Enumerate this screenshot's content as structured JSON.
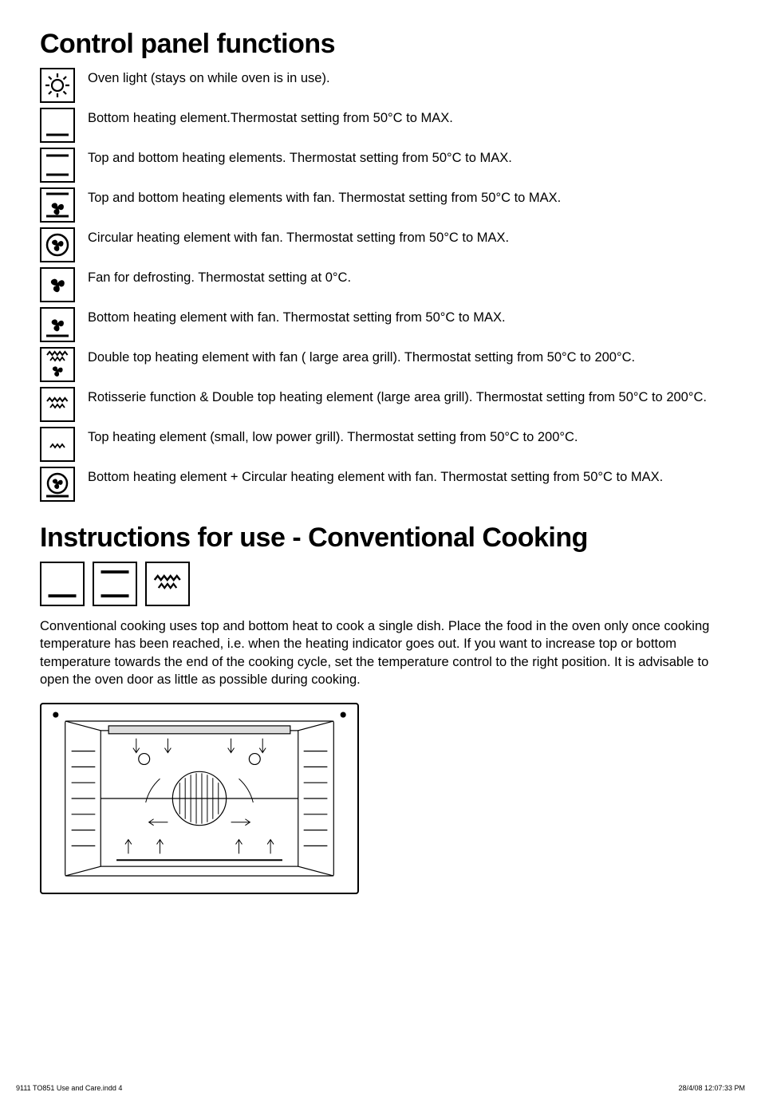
{
  "section1": {
    "title": "Control panel functions",
    "functions": [
      {
        "icon": "light",
        "text": "Oven light (stays on while oven is in use)."
      },
      {
        "icon": "bottom",
        "text": "Bottom heating element.Thermostat setting from 50°C to MAX."
      },
      {
        "icon": "top-bottom",
        "text": "Top and bottom heating elements. Thermostat setting from 50°C to MAX."
      },
      {
        "icon": "top-bottom-fan",
        "text": "Top and bottom heating elements with fan. Thermostat setting from 50°C to MAX."
      },
      {
        "icon": "circ-fan",
        "text": "Circular heating element with fan. Thermostat setting from 50°C to MAX."
      },
      {
        "icon": "fan",
        "text": "Fan for defrosting. Thermostat setting at 0°C."
      },
      {
        "icon": "bottom-fan",
        "text": "Bottom heating element with fan. Thermostat setting from 50°C to MAX."
      },
      {
        "icon": "dbl-top-fan",
        "text": "Double top heating element with fan ( large area grill). Thermostat setting from 50°C to 200°C."
      },
      {
        "icon": "rotis-dbl-top",
        "text": "Rotisserie function & Double top heating element (large area grill). Thermostat setting from 50°C to 200°C."
      },
      {
        "icon": "top-small",
        "text": "Top heating element (small, low power grill). Thermostat setting from 50°C to 200°C."
      },
      {
        "icon": "bottom-circ-fan",
        "text": "Bottom heating element + Circular heating element with fan. Thermostat setting from 50°C to MAX."
      }
    ]
  },
  "section2": {
    "title": "Instructions for use - Conventional Cooking",
    "icons": [
      "bottom",
      "top-bottom",
      "rotis-dbl-top"
    ],
    "paragraph": "Conventional cooking uses top and bottom heat to cook a single dish. Place the food in the oven only once cooking temperature has  been reached, i.e. when the heating indicator goes out. If you want to increase top or bottom temperature towards the end of the cooking cycle, set the temperature control to the right position. It is advisable to open the oven door as little as possible during cooking."
  },
  "footer": {
    "left": "9111 TO851 Use and Care.indd   4",
    "right": "28/4/08   12:07:33 PM"
  },
  "style": {
    "stroke": "#000000",
    "stroke_heavy": 2.2,
    "stroke_med": 1.8
  }
}
